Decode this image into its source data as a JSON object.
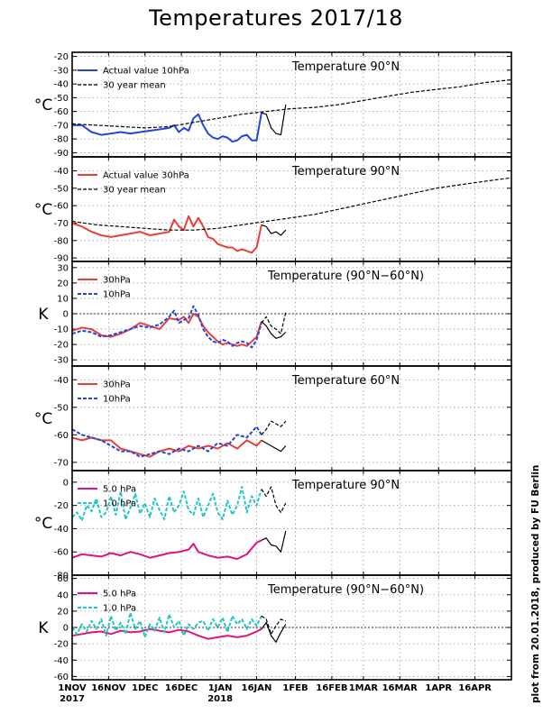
{
  "title": "Temperatures 2017/18",
  "credit": "plot from 20.01.2018, produced by FU Berlin",
  "x_axis": {
    "ticks": [
      {
        "label": "1NOV",
        "label2": "2017",
        "day": 0
      },
      {
        "label": "16NOV",
        "label2": "",
        "day": 15
      },
      {
        "label": "1DEC",
        "label2": "",
        "day": 30
      },
      {
        "label": "16DEC",
        "label2": "",
        "day": 45
      },
      {
        "label": "1JAN",
        "label2": "2018",
        "day": 61
      },
      {
        "label": "16JAN",
        "label2": "",
        "day": 76
      },
      {
        "label": "1FEB",
        "label2": "",
        "day": 92
      },
      {
        "label": "16FEB",
        "label2": "",
        "day": 107
      },
      {
        "label": "1MAR",
        "label2": "",
        "day": 120
      },
      {
        "label": "16MAR",
        "label2": "",
        "day": 135
      },
      {
        "label": "1APR",
        "label2": "",
        "day": 151
      },
      {
        "label": "16APR",
        "label2": "",
        "day": 166
      }
    ],
    "range_days": [
      0,
      181
    ]
  },
  "chart_data": [
    {
      "type": "line",
      "title": "Temperature 90°N",
      "ylabel": "°C",
      "ylim": [
        -93,
        -17
      ],
      "yticks": [
        -20,
        -30,
        -40,
        -50,
        -60,
        -70,
        -80,
        -90
      ],
      "grid": true,
      "legend": "top-left",
      "series": [
        {
          "name": "Actual value 10hPa",
          "color": "#2447d8",
          "style": "solid",
          "x": [
            0,
            4,
            8,
            12,
            16,
            20,
            24,
            28,
            32,
            36,
            40,
            42,
            44,
            46,
            48,
            50,
            52,
            54,
            56,
            58,
            60,
            62,
            64,
            66,
            68,
            70,
            72,
            74,
            76,
            78
          ],
          "y": [
            -70,
            -70,
            -75,
            -77,
            -76,
            -75,
            -76,
            -75,
            -74,
            -73,
            -72,
            -70,
            -75,
            -72,
            -74,
            -65,
            -62,
            -70,
            -76,
            -79,
            -80,
            -78,
            -79,
            -82,
            -81,
            -78,
            -77,
            -81,
            -81,
            -61
          ]
        },
        {
          "name": "",
          "color": "#000000",
          "style": "solid",
          "x": [
            78,
            80,
            82,
            84,
            86,
            88
          ],
          "y": [
            -61,
            -62,
            -72,
            -76,
            -77,
            -55
          ]
        },
        {
          "name": "30 year mean",
          "color": "#000000",
          "style": "dashed",
          "x": [
            0,
            10,
            20,
            30,
            40,
            50,
            60,
            70,
            80,
            90,
            100,
            110,
            120,
            130,
            140,
            150,
            160,
            170,
            181
          ],
          "y": [
            -69,
            -70,
            -71,
            -72,
            -71,
            -68,
            -65,
            -62,
            -60,
            -58,
            -57,
            -55,
            -52,
            -49,
            -46,
            -44,
            -42,
            -39,
            -37
          ]
        }
      ]
    },
    {
      "type": "line",
      "title": "Temperature 90°N",
      "ylabel": "°C",
      "ylim": [
        -92,
        -32
      ],
      "yticks": [
        -40,
        -50,
        -60,
        -70,
        -80,
        -90
      ],
      "grid": true,
      "legend": "top-left",
      "series": [
        {
          "name": "Actual value 30hPa",
          "color": "#e8403a",
          "style": "solid",
          "x": [
            0,
            4,
            8,
            12,
            16,
            20,
            24,
            28,
            32,
            36,
            40,
            42,
            44,
            46,
            48,
            50,
            52,
            54,
            56,
            58,
            60,
            62,
            64,
            66,
            68,
            70,
            72,
            74,
            76,
            78
          ],
          "y": [
            -70,
            -72,
            -75,
            -77,
            -78,
            -77,
            -76,
            -75,
            -77,
            -76,
            -75,
            -68,
            -72,
            -74,
            -66,
            -72,
            -67,
            -72,
            -78,
            -79,
            -82,
            -83,
            -84,
            -84,
            -86,
            -85,
            -86,
            -87,
            -84,
            -71
          ]
        },
        {
          "name": "",
          "color": "#000000",
          "style": "solid",
          "x": [
            78,
            80,
            82,
            84,
            86,
            88
          ],
          "y": [
            -71,
            -72,
            -76,
            -75,
            -77,
            -74
          ]
        },
        {
          "name": "30 year mean",
          "color": "#000000",
          "style": "dashed",
          "x": [
            0,
            10,
            20,
            30,
            40,
            50,
            60,
            70,
            80,
            90,
            100,
            110,
            120,
            130,
            140,
            150,
            160,
            170,
            181
          ],
          "y": [
            -69,
            -71,
            -72,
            -73,
            -74,
            -74,
            -73,
            -71,
            -69,
            -67,
            -65,
            -62,
            -59,
            -56,
            -53,
            -50,
            -48,
            -46,
            -44
          ]
        }
      ]
    },
    {
      "type": "line",
      "title": "Temperature (90°N−60°N)",
      "ylabel": "K",
      "ylim": [
        -34,
        34
      ],
      "yticks": [
        30,
        20,
        10,
        0,
        -10,
        -20,
        -30
      ],
      "grid": true,
      "legend": "top-left",
      "series": [
        {
          "name": "30hPa",
          "color": "#e8403a",
          "style": "solid",
          "x": [
            0,
            4,
            8,
            12,
            16,
            20,
            24,
            28,
            32,
            36,
            40,
            44,
            46,
            48,
            50,
            52,
            54,
            56,
            58,
            60,
            62,
            64,
            66,
            68,
            70,
            72,
            74,
            76,
            78
          ],
          "y": [
            -11,
            -9,
            -10,
            -14,
            -15,
            -13,
            -10,
            -6,
            -8,
            -10,
            -3,
            -4,
            -2,
            -6,
            0,
            -2,
            -8,
            -12,
            -15,
            -18,
            -20,
            -19,
            -20,
            -21,
            -20,
            -21,
            -18,
            -15,
            -5
          ]
        },
        {
          "name": "10hPa",
          "color": "#2447d8",
          "style": "dashed",
          "x": [
            0,
            4,
            8,
            12,
            16,
            20,
            24,
            28,
            32,
            36,
            40,
            42,
            44,
            46,
            48,
            50,
            52,
            54,
            56,
            58,
            60,
            62,
            64,
            66,
            68,
            70,
            72,
            74,
            76,
            78
          ],
          "y": [
            -13,
            -11,
            -12,
            -15,
            -14,
            -12,
            -10,
            -8,
            -9,
            -7,
            -2,
            2,
            -6,
            -4,
            -3,
            5,
            -1,
            -10,
            -15,
            -18,
            -19,
            -17,
            -18,
            -21,
            -19,
            -18,
            -19,
            -22,
            -17,
            -6
          ]
        },
        {
          "name": "",
          "color": "#000000",
          "style": "dashed",
          "x": [
            78,
            80,
            82,
            84,
            86,
            88
          ],
          "y": [
            -6,
            -2,
            -8,
            -10,
            -13,
            1
          ]
        },
        {
          "name": "",
          "color": "#000000",
          "style": "solid",
          "x": [
            78,
            80,
            82,
            84,
            86,
            88
          ],
          "y": [
            -5,
            -8,
            -13,
            -16,
            -15,
            -12
          ]
        }
      ],
      "reference_line": 0
    },
    {
      "type": "line",
      "title": "Temperature 60°N",
      "ylabel": "°C",
      "ylim": [
        -73,
        -35
      ],
      "yticks": [
        -40,
        -50,
        -60,
        -70
      ],
      "grid": true,
      "legend": "top-left",
      "series": [
        {
          "name": "30hPa",
          "color": "#e8403a",
          "style": "solid",
          "x": [
            0,
            4,
            8,
            12,
            16,
            20,
            24,
            28,
            32,
            36,
            40,
            44,
            48,
            52,
            56,
            60,
            64,
            68,
            72,
            76,
            78
          ],
          "y": [
            -61,
            -62,
            -61,
            -62,
            -62,
            -65,
            -66,
            -67,
            -68,
            -66,
            -65,
            -66,
            -64,
            -65,
            -64,
            -65,
            -63,
            -65,
            -62,
            -64,
            -62
          ]
        },
        {
          "name": "10hPa",
          "color": "#2447d8",
          "style": "dashed",
          "x": [
            0,
            4,
            8,
            12,
            16,
            20,
            24,
            28,
            32,
            36,
            40,
            44,
            48,
            52,
            56,
            60,
            64,
            68,
            72,
            76,
            78
          ],
          "y": [
            -58,
            -60,
            -61,
            -62,
            -64,
            -66,
            -66,
            -68,
            -67,
            -66,
            -67,
            -65,
            -66,
            -64,
            -66,
            -63,
            -64,
            -60,
            -61,
            -57,
            -60
          ]
        },
        {
          "name": "",
          "color": "#000000",
          "style": "dashed",
          "x": [
            78,
            80,
            82,
            84,
            86,
            88
          ],
          "y": [
            -60,
            -58,
            -55,
            -56,
            -57,
            -55
          ]
        },
        {
          "name": "",
          "color": "#000000",
          "style": "solid",
          "x": [
            78,
            80,
            82,
            84,
            86,
            88
          ],
          "y": [
            -62,
            -63,
            -64,
            -65,
            -66,
            -64
          ]
        }
      ]
    },
    {
      "type": "line",
      "title": "Temperature 90°N",
      "ylabel": "°C",
      "ylim": [
        -80,
        10
      ],
      "yticks": [
        0,
        -20,
        -40,
        -60,
        -80
      ],
      "grid": true,
      "legend": "top-left",
      "series": [
        {
          "name": "5.0 hPa",
          "color": "#e0147d",
          "style": "solid",
          "x": [
            0,
            4,
            8,
            12,
            16,
            20,
            24,
            28,
            32,
            36,
            40,
            44,
            48,
            50,
            52,
            56,
            60,
            64,
            68,
            72,
            76,
            78
          ],
          "y": [
            -65,
            -62,
            -63,
            -64,
            -61,
            -63,
            -60,
            -62,
            -65,
            -63,
            -61,
            -60,
            -58,
            -53,
            -60,
            -63,
            -65,
            -64,
            -66,
            -62,
            -52,
            -50
          ]
        },
        {
          "name": "1.0 hPa",
          "color": "#22c6c6",
          "style": "dashed",
          "x": [
            0,
            2,
            4,
            6,
            8,
            10,
            12,
            14,
            16,
            18,
            20,
            22,
            24,
            26,
            28,
            30,
            32,
            34,
            36,
            38,
            40,
            42,
            44,
            46,
            48,
            50,
            52,
            54,
            56,
            58,
            60,
            62,
            64,
            66,
            68,
            70,
            72,
            74,
            76,
            78
          ],
          "y": [
            -30,
            -26,
            -33,
            -20,
            -25,
            -14,
            -30,
            -26,
            -12,
            -28,
            -8,
            -32,
            -22,
            -10,
            -27,
            -18,
            -30,
            -14,
            -24,
            -32,
            -12,
            -26,
            -20,
            -8,
            -24,
            -28,
            -14,
            -30,
            -20,
            -10,
            -26,
            -32,
            -16,
            -28,
            -20,
            -4,
            -26,
            -12,
            -20,
            -6
          ]
        },
        {
          "name": "",
          "color": "#000000",
          "style": "dashed",
          "x": [
            78,
            80,
            82,
            84,
            86,
            88
          ],
          "y": [
            -6,
            -12,
            -4,
            -20,
            -26,
            -18
          ]
        },
        {
          "name": "",
          "color": "#000000",
          "style": "solid",
          "x": [
            78,
            80,
            82,
            84,
            86,
            88
          ],
          "y": [
            -50,
            -48,
            -54,
            -55,
            -60,
            -42
          ]
        }
      ]
    },
    {
      "type": "line",
      "title": "Temperature (90°N−60°N)",
      "ylabel": "K",
      "ylim": [
        -64,
        64
      ],
      "yticks": [
        60,
        40,
        20,
        0,
        -20,
        -40,
        -60
      ],
      "grid": true,
      "legend": "top-left",
      "series": [
        {
          "name": "5.0 hPa",
          "color": "#e0147d",
          "style": "solid",
          "x": [
            0,
            4,
            8,
            12,
            16,
            20,
            24,
            28,
            32,
            36,
            40,
            44,
            48,
            52,
            56,
            60,
            64,
            68,
            72,
            76,
            78
          ],
          "y": [
            -10,
            -8,
            -6,
            -5,
            -8,
            -4,
            -6,
            -5,
            -2,
            -4,
            -6,
            -3,
            -5,
            -10,
            -14,
            -12,
            -10,
            -12,
            -10,
            -5,
            -2
          ]
        },
        {
          "name": "1.0 hPa",
          "color": "#22c6c6",
          "style": "dashed",
          "x": [
            0,
            2,
            4,
            6,
            8,
            10,
            12,
            14,
            16,
            18,
            20,
            22,
            24,
            26,
            28,
            30,
            32,
            34,
            36,
            38,
            40,
            42,
            44,
            46,
            48,
            50,
            52,
            54,
            56,
            58,
            60,
            62,
            64,
            66,
            68,
            70,
            72,
            74,
            76,
            78
          ],
          "y": [
            0,
            -8,
            4,
            -5,
            8,
            -2,
            10,
            -10,
            14,
            -4,
            6,
            -8,
            18,
            -2,
            8,
            -12,
            4,
            -4,
            12,
            -6,
            16,
            0,
            8,
            -10,
            4,
            -2,
            6,
            8,
            -4,
            10,
            0,
            12,
            -6,
            14,
            4,
            10,
            -2,
            10,
            2,
            14
          ]
        },
        {
          "name": "",
          "color": "#000000",
          "style": "dashed",
          "x": [
            78,
            80,
            82,
            84,
            86,
            88
          ],
          "y": [
            14,
            10,
            -8,
            2,
            10,
            8
          ]
        },
        {
          "name": "",
          "color": "#000000",
          "style": "solid",
          "x": [
            78,
            80,
            82,
            84,
            86,
            88
          ],
          "y": [
            -2,
            6,
            -10,
            -18,
            -6,
            4
          ]
        }
      ],
      "reference_line": 0
    }
  ]
}
